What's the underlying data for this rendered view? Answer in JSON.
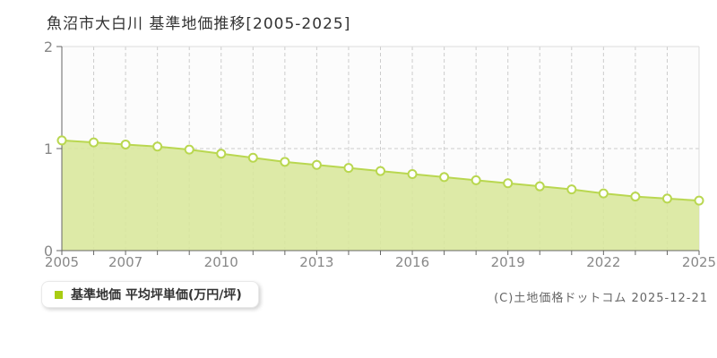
{
  "page": {
    "title": "魚沼市大白川 基準地価推移[2005-2025]"
  },
  "legend": {
    "label": "基準地価 平均坪単価(万円/坪)"
  },
  "footer": {
    "copyright": "(C)土地価格ドットコム 2025-12-21"
  },
  "chart_data": {
    "type": "area",
    "title": "魚沼市大白川 基準地価推移[2005-2025]",
    "x": [
      2005,
      2006,
      2007,
      2008,
      2009,
      2010,
      2011,
      2012,
      2013,
      2014,
      2015,
      2016,
      2017,
      2018,
      2019,
      2020,
      2021,
      2022,
      2023,
      2024,
      2025
    ],
    "series": [
      {
        "name": "基準地価 平均坪単価(万円/坪)",
        "values": [
          1.08,
          1.06,
          1.04,
          1.02,
          0.99,
          0.95,
          0.91,
          0.87,
          0.84,
          0.81,
          0.78,
          0.75,
          0.72,
          0.69,
          0.66,
          0.63,
          0.6,
          0.56,
          0.53,
          0.51,
          0.49
        ]
      }
    ],
    "xlabel": "",
    "ylabel": "万円/坪",
    "ylim": [
      0,
      2
    ],
    "yticks": [
      0,
      1,
      2
    ],
    "xticks_labeled": [
      2005,
      2007,
      2010,
      2013,
      2016,
      2019,
      2022,
      2025
    ],
    "grid": {
      "vertical": "dashed-every-year",
      "horizontal": "dashed-at-1"
    },
    "legend_position": "bottom-left",
    "colors": {
      "line": "#b9d750",
      "fill": "#d8e79b",
      "point_fill": "#ffffff",
      "point_stroke": "#b9d750",
      "legend_marker": "#a9cc12",
      "axis": "#666666",
      "border": "#dddddd",
      "grid": "#cccccc",
      "tick_label": "#888888",
      "plot_bg": "#fcfcfc"
    }
  }
}
